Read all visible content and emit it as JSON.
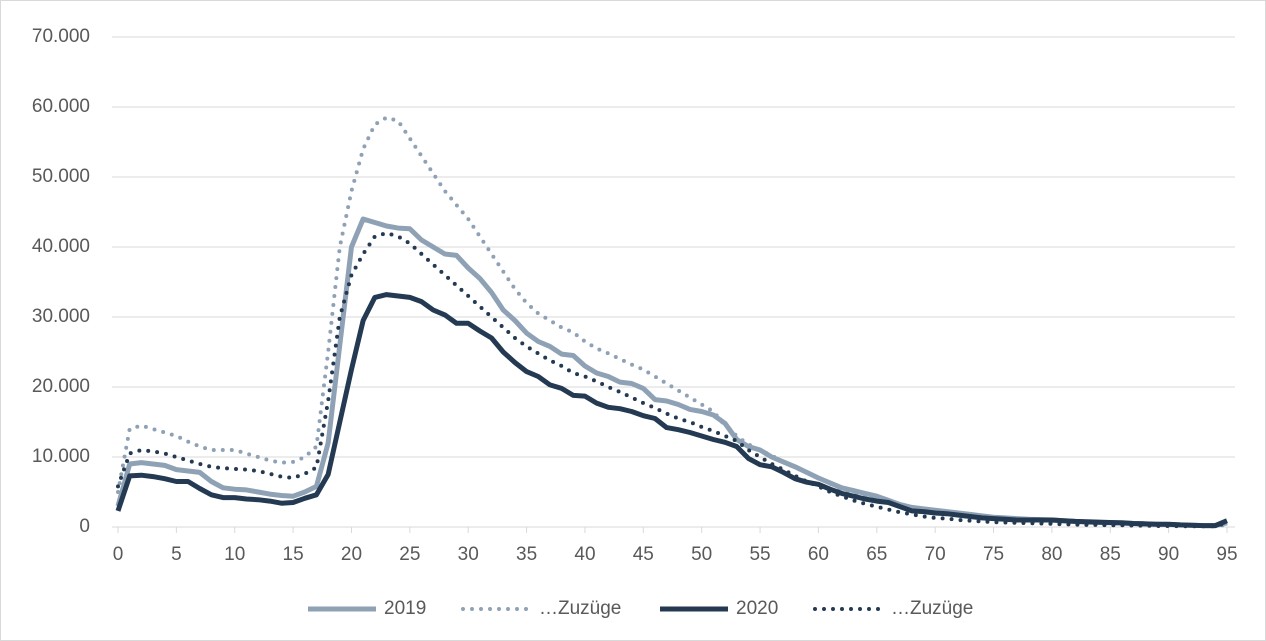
{
  "chart_data": {
    "type": "line",
    "x": [
      0,
      1,
      2,
      3,
      4,
      5,
      6,
      7,
      8,
      9,
      10,
      11,
      12,
      13,
      14,
      15,
      16,
      17,
      18,
      19,
      20,
      21,
      22,
      23,
      24,
      25,
      26,
      27,
      28,
      29,
      30,
      31,
      32,
      33,
      34,
      35,
      36,
      37,
      38,
      39,
      40,
      41,
      42,
      43,
      44,
      45,
      46,
      47,
      48,
      49,
      50,
      51,
      52,
      53,
      54,
      55,
      56,
      57,
      58,
      59,
      60,
      61,
      62,
      63,
      64,
      65,
      66,
      67,
      68,
      69,
      70,
      71,
      72,
      73,
      74,
      75,
      76,
      77,
      78,
      79,
      80,
      81,
      82,
      83,
      84,
      85,
      86,
      87,
      88,
      89,
      90,
      91,
      92,
      93,
      94,
      95
    ],
    "xlim": [
      0,
      95
    ],
    "xticks": [
      0,
      5,
      10,
      15,
      20,
      25,
      30,
      35,
      40,
      45,
      50,
      55,
      60,
      65,
      70,
      75,
      80,
      85,
      90,
      95
    ],
    "ylim": [
      0,
      70000
    ],
    "yticks": [
      0,
      {
        "value": 10000,
        "label": "10.000"
      },
      {
        "value": 20000,
        "label": "20.000"
      },
      {
        "value": 30000,
        "label": "30.000"
      },
      {
        "value": 40000,
        "label": "40.000"
      },
      {
        "value": 50000,
        "label": "50.000"
      },
      {
        "value": 60000,
        "label": "60.000"
      },
      {
        "value": 70000,
        "label": "70.000"
      }
    ],
    "grid": true,
    "legend": "bottom",
    "series": [
      {
        "name": "2019",
        "color": "#8fa2b5",
        "style": "solid",
        "values": [
          3000,
          9000,
          9200,
          9000,
          8800,
          8200,
          8000,
          7800,
          6500,
          5600,
          5400,
          5300,
          5000,
          4700,
          4500,
          4400,
          5000,
          5800,
          12000,
          26000,
          40000,
          44000,
          43500,
          43000,
          42700,
          42600,
          41000,
          40000,
          39000,
          38800,
          37000,
          35500,
          33500,
          31000,
          29500,
          27700,
          26500,
          25800,
          24700,
          24500,
          23000,
          22000,
          21500,
          20700,
          20500,
          19800,
          18200,
          18000,
          17500,
          16800,
          16500,
          16000,
          14800,
          12500,
          11500,
          11000,
          10000,
          9300,
          8600,
          7800,
          7000,
          6300,
          5600,
          5200,
          4800,
          4400,
          3800,
          3200,
          2800,
          2600,
          2400,
          2200,
          2000,
          1800,
          1600,
          1400,
          1300,
          1200,
          1100,
          1050,
          1000,
          900,
          800,
          700,
          650,
          600,
          550,
          500,
          450,
          400,
          350,
          300,
          250,
          200,
          200,
          600
        ]
      },
      {
        "name": "…Zuzüge",
        "color": "#8fa2b5",
        "style": "dotted",
        "values": [
          5000,
          14000,
          14500,
          14000,
          13500,
          13000,
          12200,
          11500,
          11000,
          11000,
          11000,
          10500,
          10000,
          9500,
          9200,
          9300,
          10000,
          11500,
          25000,
          40000,
          48000,
          54000,
          57500,
          58500,
          58000,
          55500,
          53000,
          50500,
          48000,
          46000,
          44000,
          41500,
          39000,
          36500,
          34000,
          32000,
          30500,
          29500,
          28500,
          27800,
          26500,
          25500,
          24800,
          24000,
          23200,
          22500,
          21500,
          20500,
          19500,
          18500,
          17500,
          16500,
          14500,
          13000,
          11800,
          11000,
          10200,
          9300,
          8500,
          7800,
          7000,
          6200,
          5400,
          4900,
          4400,
          4000,
          3500,
          3000,
          2600,
          2300,
          2000,
          1800,
          1600,
          1400,
          1200,
          1100,
          1000,
          900,
          850,
          800,
          750,
          700,
          600,
          550,
          500,
          450,
          400,
          350,
          300,
          300,
          250,
          200,
          200,
          150,
          150,
          300
        ]
      },
      {
        "name": "2020",
        "color": "#243a52",
        "style": "solid",
        "values": [
          2300,
          7300,
          7400,
          7200,
          6900,
          6500,
          6500,
          5500,
          4600,
          4200,
          4200,
          4000,
          3900,
          3700,
          3400,
          3500,
          4100,
          4600,
          7500,
          15000,
          22500,
          29500,
          32800,
          33200,
          33000,
          32800,
          32200,
          31000,
          30300,
          29100,
          29100,
          28000,
          27000,
          25000,
          23500,
          22200,
          21500,
          20300,
          19800,
          18800,
          18700,
          17700,
          17100,
          16900,
          16500,
          15900,
          15500,
          14200,
          13900,
          13500,
          13000,
          12500,
          12100,
          11500,
          9800,
          8900,
          8600,
          7800,
          6900,
          6400,
          6100,
          5400,
          4800,
          4400,
          4000,
          3700,
          3500,
          2900,
          2300,
          2200,
          2000,
          1900,
          1700,
          1500,
          1300,
          1200,
          1100,
          1000,
          1000,
          1000,
          1000,
          900,
          800,
          750,
          700,
          650,
          600,
          500,
          450,
          400,
          400,
          300,
          250,
          200,
          200,
          900
        ]
      },
      {
        "name": "…Zuzüge",
        "color": "#243a52",
        "style": "dotted",
        "values": [
          5800,
          10500,
          11000,
          10800,
          10500,
          10000,
          9500,
          9000,
          8600,
          8400,
          8300,
          8200,
          8000,
          7600,
          7200,
          7000,
          7600,
          8500,
          18000,
          30000,
          36000,
          39000,
          41500,
          42000,
          41500,
          40500,
          39000,
          37500,
          36000,
          34500,
          33000,
          31500,
          30000,
          28500,
          27000,
          25800,
          24800,
          23800,
          23000,
          22000,
          21500,
          20800,
          20000,
          19300,
          18500,
          17700,
          17000,
          16200,
          15500,
          15000,
          14300,
          13700,
          13000,
          12300,
          11000,
          10000,
          9000,
          8200,
          7300,
          6500,
          5800,
          5000,
          4400,
          3800,
          3300,
          2900,
          2500,
          2100,
          1800,
          1500,
          1300,
          1200,
          1000,
          900,
          800,
          700,
          650,
          600,
          550,
          500,
          450,
          400,
          350,
          300,
          300,
          250,
          250,
          200,
          200,
          150,
          150,
          100,
          100,
          100,
          100,
          600
        ]
      }
    ]
  }
}
